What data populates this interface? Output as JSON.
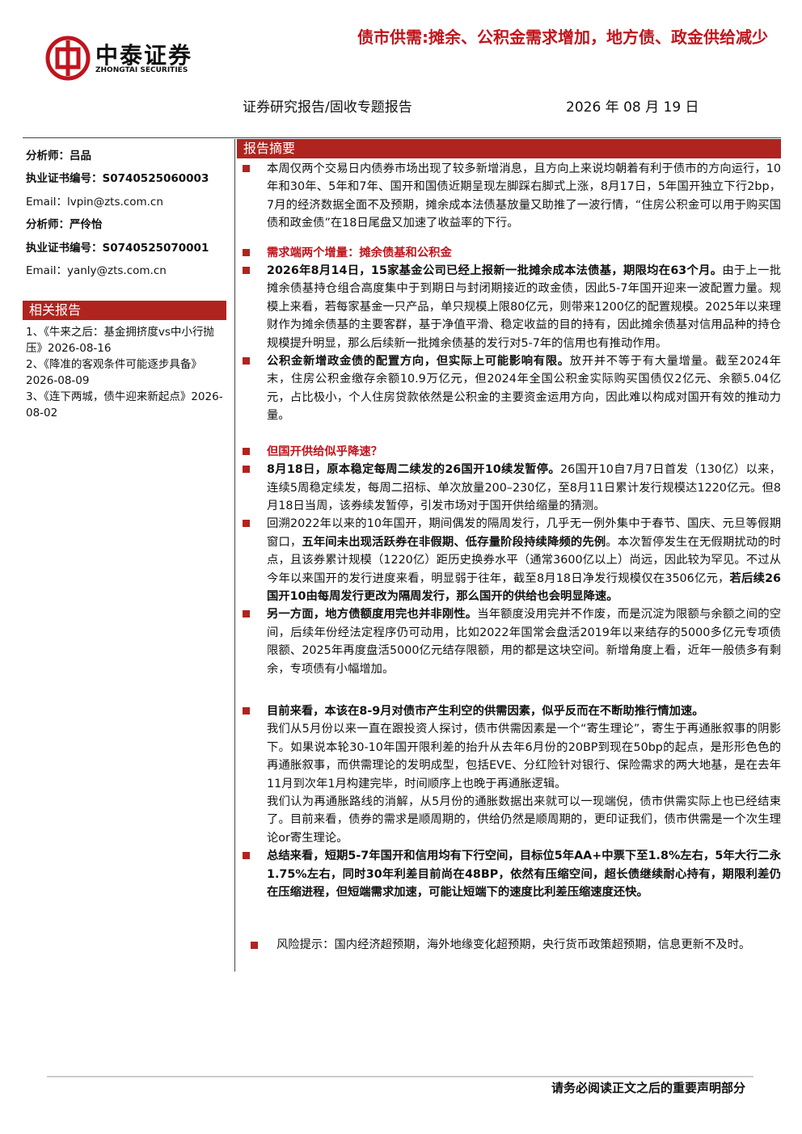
{
  "header": {
    "logo_cn": "中泰证券",
    "logo_en": "ZHONGTAI SECURITIES",
    "title": "债市供需:摊余、公积金需求增加，地方债、政金供给减少",
    "report_type": "证券研究报告/固收专题报告",
    "date": "2026 年 08 月 19 日"
  },
  "sidebar": {
    "lines": [
      {
        "b": "分析师：吕品"
      },
      {
        "b": "执业证书编号：S0740525060003"
      },
      {
        "t": "Email：lvpin@zts.com.cn"
      },
      {
        "b": "分析师：严伶怡"
      },
      {
        "b": "执业证书编号：S0740525070001"
      },
      {
        "t": "Email：yanly@zts.com.cn"
      }
    ],
    "related_title": "相关报告",
    "related": [
      {
        "title": "1、《牛来之后：基金拥挤度vs中小行抛压》",
        "date": "2026-08-16"
      },
      {
        "title": "2、《降准的客观条件可能逐步具备》",
        "date": "2026-08-09"
      },
      {
        "title": "3、《连下两城，债牛迎来新起点》",
        "date": "2026-08-02"
      }
    ]
  },
  "main": {
    "section_title": "报告摘要",
    "blocks": [
      {
        "bullet": true,
        "runs": [
          {
            "t": "本周仅两个交易日内债券市场出现了较多新增消息，且方向上来说均朝着有利于债市的方向运行，10年和30年、5年和7年、国开和国债近期呈现左脚踩右脚式上涨，8月17日，5年国开独立下行2bp，7月的经济数据全面不及预期，摊余成本法债基放量又助推了一波行情，“住房公积金可以用于购买国债和政金债”在18日尾盘又加速了收益率的下行。"
          }
        ]
      },
      {
        "bullet": true,
        "runs": [
          {
            "h": "需求端两个增量：摊余债基和公积金"
          }
        ]
      },
      {
        "bullet": true,
        "runs": [
          {
            "b": "2026年8月14日，15家基金公司已经上报新一批摊余成本法债基，期限均在63个月。"
          },
          {
            "t": "由于上一批摊余债基持仓组合高度集中于到期日与封闭期接近的政金债，因此5-7年国开迎来一波配置力量。规模上来看，若每家基金一只产品，单只规模上限80亿元，则带来1200亿的配置规模。2025年以来理财作为摊余债基的主要客群，基于净值平滑、稳定收益的目的持有，因此摊余债基对信用品种的持仓规模提升明显，那么后续新一批摊余债基的发行对5-7年的信用也有推动作用。"
          }
        ]
      },
      {
        "bullet": true,
        "runs": [
          {
            "b": "公积金新增政金债的配置方向，但实际上可能影响有限。"
          },
          {
            "t": "放开并不等于有大量增量。截至2024年末，住房公积金缴存余额10.9万亿元，但2024年全国公积金实际购买国债仅2亿元、余额5.04亿元，占比极小，个人住房贷款依然是公积金的主要资金运用方向，因此难以构成对国开有效的推动力量。"
          }
        ]
      },
      {
        "bullet": true,
        "runs": [
          {
            "h": "但国开供给似乎降速？"
          }
        ]
      },
      {
        "bullet": true,
        "runs": [
          {
            "b": "8月18日，原本稳定每周二续发的26国开10续发暂停。"
          },
          {
            "t": "26国开10自7月7日首发（130亿）以来，连续5周稳定续发，每周二招标、单次放量200–230亿，至8月11日累计发行规模达1220亿元。但8月18日当周，该券续发暂停，引发市场对于国开供给缩量的猜测。"
          }
        ]
      },
      {
        "bullet": true,
        "runs": [
          {
            "t": "回溯2022年以来的10年国开，期间偶发的隔周发行，几乎无一例外集中于春节、国庆、元旦等假期窗口，"
          },
          {
            "b": "五年间未出现活跃券在非假期、低存量阶段持续降频的先例"
          },
          {
            "t": "。本次暂停发生在无假期扰动的时点，且该券累计规模（1220亿）距历史换券水平（通常3600亿以上）尚远，因此较为罕见。不过从今年以来国开的发行进度来看，明显弱于往年，截至8月18日净发行规模仅在3506亿元，"
          },
          {
            "b": "若后续26国开10由每周发行更改为隔周发行，那么国开的供给也会明显降速。"
          }
        ]
      },
      {
        "bullet": true,
        "runs": [
          {
            "b": "另一方面，地方债额度用完也并非刚性。"
          },
          {
            "t": "当年额度没用完并不作废，而是沉淀为限额与余额之间的空间，后续年份经法定程序仍可动用，比如2022年国常会盘活2019年以来结存的5000多亿元专项债限额、2025年再度盘活5000亿元结存限额，用的都是这块空间。新增角度上看，近年一般债多有剩余，专项债有小幅增加。"
          }
        ]
      },
      {
        "bullet": true,
        "runs": [
          {
            "b": "目前来看，本该在8-9月对债市产生利空的供需因素，似乎反而在不断助推行情加速。"
          }
        ]
      },
      {
        "bullet": false,
        "runs": [
          {
            "t": "我们从5月份以来一直在跟投资人探讨，债市供需因素是一个“寄生理论”，寄生于再通胀叙事的阴影下。如果说本轮30-10年国开限利差的抬升从去年6月份的20BP到现在50bp的起点，是形形色色的再通胀叙事，而供需理论的发明成型，包括EVE、分红险针对银行、保险需求的两大地基，是在去年11月到次年1月构建完毕，时间顺序上也晚于再通胀逻辑。"
          }
        ]
      },
      {
        "bullet": false,
        "runs": [
          {
            "t": "我们认为再通胀路线的消解，从5月份的通胀数据出来就可以一现端倪，债市供需实际上也已经结束了。目前来看，债券的需求是顺周期的，供给仍然是顺周期的，更印证我们，债市供需是一个次生理论or寄生理论。"
          }
        ]
      },
      {
        "bullet": true,
        "runs": [
          {
            "b": "总结来看，短期5-7年国开和信用均有下行空间，目标位5年AA+中票下至1.8%左右，5年大行二永1.75%左右，同时30年利差目前尚在48BP，依然有压缩空间，超长债继续耐心持有，期限利差仍在压缩进程，但短端需求加速，可能让短端下的速度比利差压缩速度还快。"
          }
        ]
      }
    ],
    "risk": "风险提示：国内经济超预期，海外地缘变化超预期，央行货币政策超预期，信息更新不及时。"
  },
  "footer": {
    "notice": "请务必阅读正文之后的重要声明部分"
  }
}
